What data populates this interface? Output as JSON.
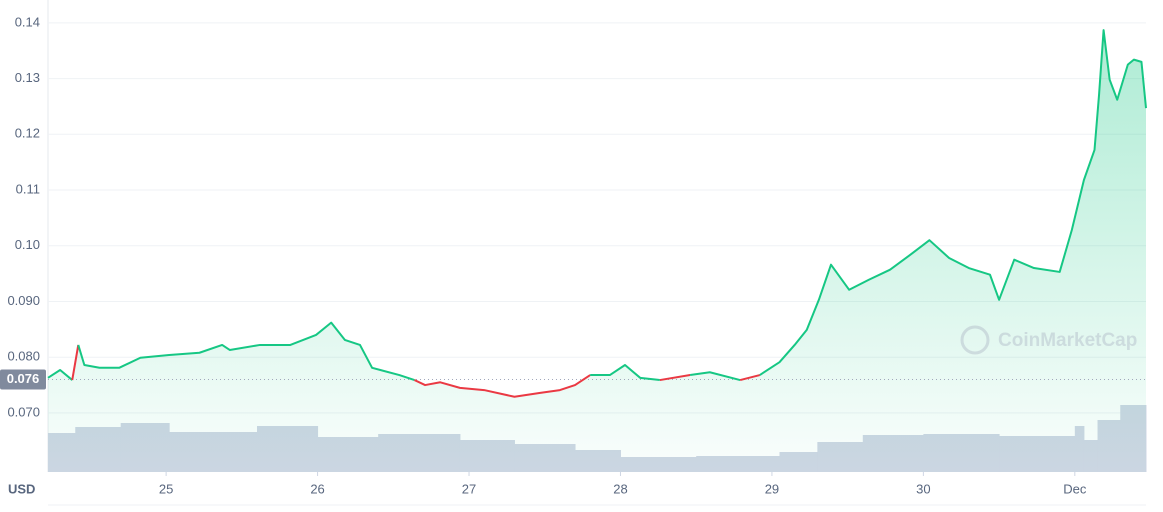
{
  "chart_data": {
    "type": "line",
    "unit": "USD",
    "watermark": "CoinMarketCap",
    "xlim": [
      24.22,
      31.47
    ],
    "xticks": [
      {
        "value": 25,
        "label": "25"
      },
      {
        "value": 26,
        "label": "26"
      },
      {
        "value": 27,
        "label": "27"
      },
      {
        "value": 28,
        "label": "28"
      },
      {
        "value": 29,
        "label": "29"
      },
      {
        "value": 30,
        "label": "30"
      },
      {
        "value": 31,
        "label": "Dec"
      }
    ],
    "ylim": [
      0.0594,
      0.1441
    ],
    "yticks": [
      {
        "value": 0.07,
        "label": "0.070"
      },
      {
        "value": 0.08,
        "label": "0.080"
      },
      {
        "value": 0.09,
        "label": "0.090"
      },
      {
        "value": 0.1,
        "label": "0.10"
      },
      0.11,
      0.12,
      0.13,
      0.14
    ],
    "grid": true,
    "reference": {
      "value": 0.076,
      "label": "0.076"
    },
    "up_color": "#16c784",
    "down_color": "#ea3943",
    "x": [
      24.22,
      24.3,
      24.38,
      24.42,
      24.46,
      24.56,
      24.69,
      24.83,
      25.02,
      25.22,
      25.37,
      25.42,
      25.62,
      25.82,
      25.99,
      26.09,
      26.18,
      26.28,
      26.36,
      26.54,
      26.64,
      26.71,
      26.81,
      26.94,
      27.1,
      27.3,
      27.47,
      27.6,
      27.7,
      27.8,
      27.93,
      28.03,
      28.13,
      28.26,
      28.46,
      28.59,
      28.79,
      28.92,
      29.05,
      29.15,
      29.23,
      29.31,
      29.39,
      29.51,
      29.64,
      29.78,
      29.91,
      30.04,
      30.17,
      30.3,
      30.44,
      30.5,
      30.6,
      30.73,
      30.9,
      30.98,
      31.06,
      31.13,
      31.16,
      31.19,
      31.23,
      31.28,
      31.35,
      31.39,
      31.44,
      31.47
    ],
    "values": [
      0.0763,
      0.0777,
      0.0759,
      0.0822,
      0.0786,
      0.0781,
      0.0781,
      0.0799,
      0.0804,
      0.0808,
      0.0822,
      0.0813,
      0.0822,
      0.0822,
      0.084,
      0.0862,
      0.0831,
      0.0822,
      0.0781,
      0.0768,
      0.0759,
      0.075,
      0.0755,
      0.0745,
      0.0741,
      0.0729,
      0.0736,
      0.0741,
      0.075,
      0.0768,
      0.0768,
      0.0786,
      0.0763,
      0.0759,
      0.0768,
      0.0773,
      0.0759,
      0.0768,
      0.0791,
      0.0822,
      0.0849,
      0.0903,
      0.0966,
      0.0921,
      0.0939,
      0.0957,
      0.0983,
      0.101,
      0.0978,
      0.096,
      0.0948,
      0.0903,
      0.0975,
      0.096,
      0.0953,
      0.1028,
      0.1118,
      0.1172,
      0.1271,
      0.1387,
      0.1298,
      0.1262,
      0.1325,
      0.1334,
      0.133,
      0.1247
    ],
    "volume": {
      "color": "#cfd6e4",
      "lim": [
        0,
        120
      ],
      "x": [
        24.22,
        24.4,
        24.7,
        25.02,
        25.6,
        26.0,
        26.4,
        26.94,
        27.3,
        27.7,
        28.0,
        28.5,
        29.05,
        29.3,
        29.6,
        30.0,
        30.5,
        31.0,
        31.06,
        31.15,
        31.3
      ],
      "values": [
        39,
        45,
        49,
        40,
        46,
        35,
        38,
        32,
        28,
        22,
        15,
        16,
        20,
        30,
        37,
        38,
        36,
        46,
        32,
        52,
        67
      ]
    }
  }
}
